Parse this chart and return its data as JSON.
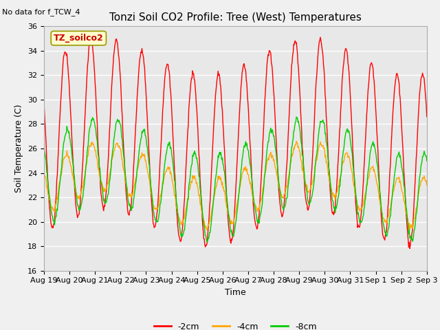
{
  "title": "Tonzi Soil CO2 Profile: Tree (West) Temperatures",
  "no_data_label": "No data for f_TCW_4",
  "ylabel": "Soil Temperature (C)",
  "xlabel": "Time",
  "legend_label": "TZ_soilco2",
  "ylim": [
    16,
    36
  ],
  "yticks": [
    16,
    18,
    20,
    22,
    24,
    26,
    28,
    30,
    32,
    34,
    36
  ],
  "xtick_labels": [
    "Aug 19",
    "Aug 20",
    "Aug 21",
    "Aug 22",
    "Aug 23",
    "Aug 24",
    "Aug 25",
    "Aug 26",
    "Aug 27",
    "Aug 28",
    "Aug 29",
    "Aug 30",
    "Aug 31",
    "Sep 1",
    "Sep 2",
    "Sep 3"
  ],
  "line_colors": {
    "-2cm": "#FF0000",
    "-4cm": "#FFA500",
    "-8cm": "#00CC00"
  },
  "fig_bg_color": "#F0F0F0",
  "plot_bg_color": "#E8E8E8",
  "grid_color": "#FFFFFF",
  "num_days": 15,
  "legend_box_color": "#FFFFCC",
  "legend_box_edge": "#999900",
  "amp_2cm": 7.0,
  "base_2cm": 26.5,
  "amp_4cm": 2.0,
  "base_4cm": 23.0,
  "amp_8cm": 3.5,
  "base_8cm": 23.5,
  "peak_hour": 14.0
}
